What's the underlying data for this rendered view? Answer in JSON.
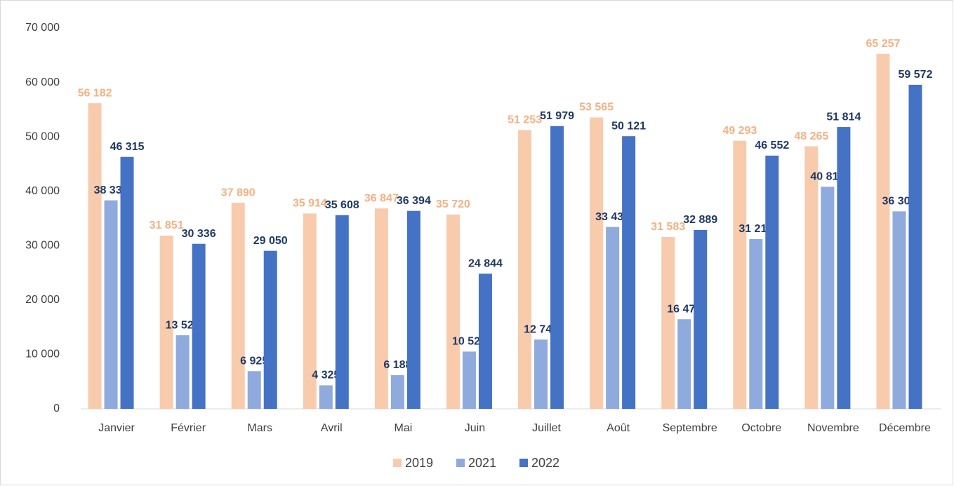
{
  "chart_data": {
    "type": "bar",
    "categories": [
      "Janvier",
      "Février",
      "Mars",
      "Avril",
      "Mai",
      "Juin",
      "Juillet",
      "Août",
      "Septembre",
      "Octobre",
      "Novembre",
      "Décembre"
    ],
    "series": [
      {
        "name": "2019",
        "color": "#f8cbad",
        "label_color": "#f4b183",
        "values": [
          56182,
          31851,
          37890,
          35914,
          36847,
          35720,
          51253,
          53565,
          31583,
          49293,
          48265,
          65257
        ],
        "value_labels": [
          "56 182",
          "31 851",
          "37 890",
          "35 914",
          "36 847",
          "35 720",
          "51 253",
          "53 565",
          "31 583",
          "49 293",
          "48 265",
          "65 257"
        ]
      },
      {
        "name": "2021",
        "color": "#8faadc",
        "label_color": "#1f3864",
        "values": [
          38331,
          13526,
          6925,
          4325,
          6188,
          10527,
          12740,
          33438,
          16474,
          31214,
          40819,
          36304
        ],
        "value_labels": [
          "38 331",
          "13 526",
          "6 925",
          "4 325",
          "6 188",
          "10 527",
          "12 740",
          "33 438",
          "16 474",
          "31 214",
          "40 819",
          "36 304"
        ]
      },
      {
        "name": "2022",
        "color": "#4472c4",
        "label_color": "#1f3864",
        "values": [
          46315,
          30336,
          29050,
          35608,
          36394,
          24844,
          51979,
          50121,
          32889,
          46552,
          51814,
          59572
        ],
        "value_labels": [
          "46 315",
          "30 336",
          "29 050",
          "35 608",
          "36 394",
          "24 844",
          "51 979",
          "50 121",
          "32 889",
          "46 552",
          "51 814",
          "59 572"
        ]
      }
    ],
    "ylim": [
      0,
      70000
    ],
    "yticks": [
      0,
      {
        "value": 10000,
        "label": "10 000"
      },
      {
        "value": 20000,
        "label": "20 000"
      },
      {
        "value": 30000,
        "label": "30 000"
      },
      {
        "value": 40000,
        "label": "40 000"
      },
      {
        "value": 50000,
        "label": "50 000"
      },
      {
        "value": 60000,
        "label": "60 000"
      },
      {
        "value": 70000,
        "label": "70 000"
      }
    ],
    "grid": false,
    "legend": "bottom"
  }
}
